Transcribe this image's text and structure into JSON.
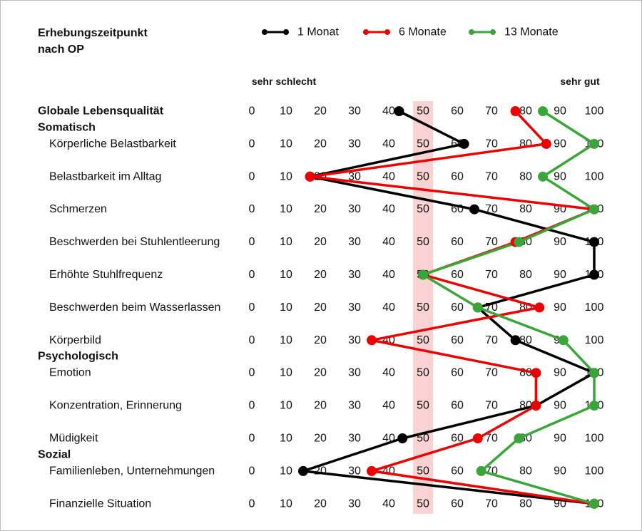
{
  "chart_data": {
    "type": "line",
    "legend_title_line1": "Erhebungszeitpunkt",
    "legend_title_line2": "nach OP",
    "left_label": "sehr schlecht",
    "right_label": "sehr gut",
    "ticks": [
      0,
      10,
      20,
      30,
      40,
      50,
      60,
      70,
      80,
      90,
      100
    ],
    "xlim": [
      0,
      100
    ],
    "highlight_value": 50,
    "legend_placement": "top",
    "categories": [
      "Globale Lebensqualität",
      "Körperliche Belastbarkeit",
      "Belastbarkeit im Alltag",
      "Schmerzen",
      "Beschwerden bei Stuhlentleerung",
      "Erhöhte Stuhlfrequenz",
      "Beschwerden beim Wasserlassen",
      "Körperbild",
      "Emotion",
      "Konzentration, Erinnerung",
      "Müdigkeit",
      "Familienleben, Unternehmungen",
      "Finanzielle Situation"
    ],
    "groups": [
      {
        "name": "Somatisch",
        "before_index": 1
      },
      {
        "name": "Psychologisch",
        "before_index": 8
      },
      {
        "name": "Sozial",
        "before_index": 11
      }
    ],
    "series": [
      {
        "name": "1 Monat",
        "color": "#000000",
        "values": [
          43,
          62,
          17,
          65,
          100,
          100,
          66,
          77,
          100,
          83,
          44,
          15,
          100
        ]
      },
      {
        "name": "6 Monate",
        "color": "#ee0000",
        "values": [
          77,
          86,
          17,
          100,
          77,
          50,
          84,
          35,
          83,
          83,
          66,
          35,
          100
        ]
      },
      {
        "name": "13 Monate",
        "color": "#3aa63a",
        "values": [
          85,
          100,
          85,
          100,
          78,
          50,
          66,
          91,
          100,
          100,
          78,
          67,
          100
        ]
      }
    ]
  }
}
